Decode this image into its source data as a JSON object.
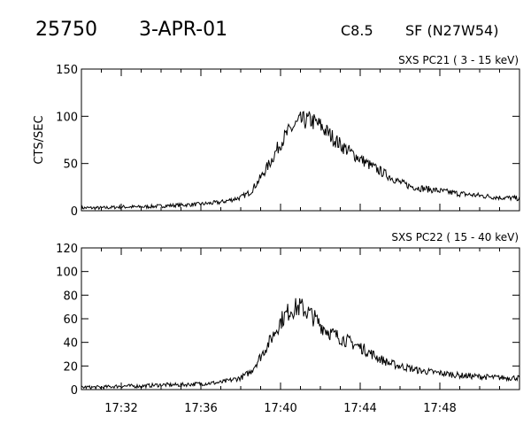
{
  "header": {
    "event_id": "25750",
    "date": "3-APR-01",
    "flare_class": "C8.5",
    "flare_info": "SF (N27W54)"
  },
  "chart_data": [
    {
      "type": "line",
      "title": "SXS PC21  (  3 - 15 keV)",
      "ylabel": "CTS/SEC",
      "xlabel": "",
      "ylim": [
        0,
        150
      ],
      "yticks": [
        0,
        50,
        100,
        150
      ],
      "grid": false,
      "series": [
        {
          "x": [
            "17:30",
            "17:31",
            "17:32",
            "17:33",
            "17:34",
            "17:35",
            "17:36",
            "17:37",
            "17:38",
            "17:38:30",
            "17:39",
            "17:39:30",
            "17:40",
            "17:40:30",
            "17:41",
            "17:41:30",
            "17:42",
            "17:42:30",
            "17:43",
            "17:43:30",
            "17:44",
            "17:44:30",
            "17:45",
            "17:45:30",
            "17:46",
            "17:46:30",
            "17:47",
            "17:48",
            "17:49",
            "17:50",
            "17:51",
            "17:52"
          ],
          "values": [
            3,
            3,
            4,
            4,
            5,
            6,
            7,
            9,
            14,
            20,
            35,
            52,
            72,
            86,
            95,
            96,
            90,
            80,
            70,
            62,
            55,
            48,
            42,
            36,
            30,
            26,
            24,
            21,
            18,
            16,
            14,
            13
          ]
        }
      ]
    },
    {
      "type": "line",
      "title": "SXS PC22  ( 15 - 40 keV)",
      "ylabel": "",
      "xlabel": "",
      "ylim": [
        0,
        120
      ],
      "yticks": [
        0,
        20,
        40,
        60,
        80,
        100,
        120
      ],
      "grid": false,
      "series": [
        {
          "x": [
            "17:30",
            "17:31",
            "17:32",
            "17:33",
            "17:34",
            "17:35",
            "17:36",
            "17:37",
            "17:38",
            "17:38:30",
            "17:39",
            "17:39:30",
            "17:40",
            "17:40:30",
            "17:41",
            "17:41:30",
            "17:42",
            "17:42:30",
            "17:43",
            "17:43:30",
            "17:44",
            "17:44:30",
            "17:45",
            "17:45:30",
            "17:46",
            "17:46:30",
            "17:47",
            "17:48",
            "17:49",
            "17:50",
            "17:51",
            "17:52"
          ],
          "values": [
            2,
            2,
            3,
            3,
            4,
            4,
            5,
            6,
            10,
            15,
            28,
            42,
            58,
            68,
            70,
            64,
            55,
            48,
            44,
            40,
            36,
            31,
            26,
            22,
            20,
            18,
            16,
            14,
            12,
            11,
            10,
            10
          ]
        }
      ]
    }
  ],
  "x_axis": {
    "range": [
      "17:30",
      "17:52"
    ],
    "tick_labels": [
      "17:32",
      "17:36",
      "17:40",
      "17:44",
      "17:48"
    ]
  }
}
